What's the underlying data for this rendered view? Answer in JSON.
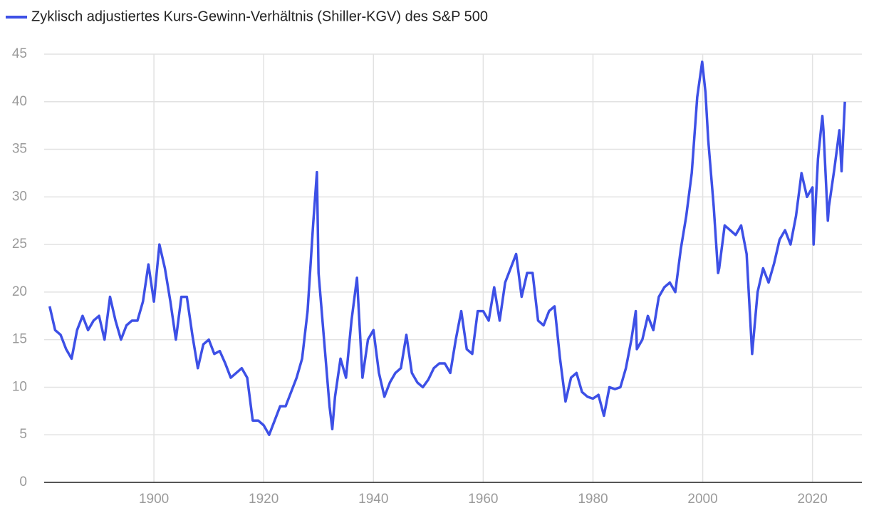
{
  "chart_data": {
    "type": "line",
    "legend_label": "Zyklisch adjustiertes Kurs-Gewinn-Verhältnis (Shiller-KGV) des S&P 500",
    "x": [
      1881,
      1882,
      1883,
      1884,
      1885,
      1886,
      1887,
      1888,
      1889,
      1890,
      1891,
      1892,
      1893,
      1894,
      1895,
      1896,
      1897,
      1898,
      1899,
      1900,
      1901,
      1902,
      1903,
      1904,
      1905,
      1906,
      1907,
      1908,
      1909,
      1910,
      1911,
      1912,
      1913,
      1914,
      1915,
      1916,
      1917,
      1918,
      1919,
      1920,
      1921,
      1922,
      1923,
      1924,
      1925,
      1926,
      1927,
      1928,
      1929,
      1929.7,
      1930,
      1931,
      1932,
      1932.5,
      1933,
      1934,
      1935,
      1936,
      1937,
      1938,
      1939,
      1940,
      1941,
      1942,
      1943,
      1944,
      1945,
      1946,
      1947,
      1948,
      1949,
      1950,
      1951,
      1952,
      1953,
      1954,
      1955,
      1956,
      1957,
      1958,
      1959,
      1960,
      1961,
      1962,
      1963,
      1964,
      1965,
      1966,
      1967,
      1968,
      1969,
      1970,
      1971,
      1972,
      1973,
      1974,
      1975,
      1976,
      1977,
      1978,
      1979,
      1980,
      1981,
      1982,
      1983,
      1984,
      1985,
      1986,
      1987,
      1987.8,
      1988,
      1989,
      1990,
      1991,
      1992,
      1993,
      1994,
      1995,
      1996,
      1997,
      1998,
      1999,
      1999.9,
      2000.5,
      2001,
      2002,
      2002.8,
      2003,
      2004,
      2005,
      2006,
      2007,
      2008,
      2009,
      2010,
      2011,
      2012,
      2013,
      2014,
      2015,
      2016,
      2017,
      2018,
      2019,
      2020,
      2020.2,
      2021,
      2021.8,
      2022,
      2022.8,
      2023,
      2024,
      2024.9,
      2025.3,
      2025.9
    ],
    "series": [
      {
        "name": "Zyklisch adjustiertes Kurs-Gewinn-Verhältnis (Shiller-KGV) des S&P 500",
        "color": "#3d50e6",
        "values": [
          18.5,
          16,
          15.5,
          14,
          13,
          16,
          17.5,
          16,
          17,
          17.5,
          15,
          19.5,
          17,
          15,
          16.5,
          17,
          17,
          19,
          22.9,
          19,
          25,
          22.5,
          19,
          15,
          19.5,
          19.5,
          15.5,
          12,
          14.5,
          15,
          13.5,
          13.8,
          12.5,
          11,
          11.5,
          12,
          11,
          6.5,
          6.5,
          6,
          5,
          6.5,
          8,
          8,
          9.5,
          11,
          13,
          18,
          27,
          32.6,
          22,
          15,
          8,
          5.6,
          9,
          13,
          11,
          17,
          21.5,
          11,
          15,
          16,
          11.5,
          9,
          10.5,
          11.5,
          12,
          15.5,
          11.5,
          10.5,
          10,
          10.8,
          12,
          12.5,
          12.5,
          11.5,
          15,
          18,
          14,
          13.5,
          18,
          18,
          17,
          20.5,
          17,
          21,
          22.5,
          24,
          19.5,
          22,
          22,
          17,
          16.5,
          18,
          18.5,
          13,
          8.5,
          11,
          11.5,
          9.5,
          9,
          8.8,
          9.2,
          7,
          10,
          9.8,
          10,
          12,
          15,
          18,
          14,
          15,
          17.5,
          16,
          19.5,
          20.5,
          21,
          20,
          24.5,
          28,
          32.5,
          40.5,
          44.2,
          41,
          36,
          29,
          22,
          22.5,
          27,
          26.5,
          26,
          27,
          24,
          13.5,
          20,
          22.5,
          21,
          23,
          25.5,
          26.5,
          25,
          28,
          32.5,
          30,
          31,
          25,
          34,
          38.5,
          37,
          27.5,
          29,
          33,
          37,
          32.7,
          40
        ]
      }
    ],
    "xlim": [
      1880,
      2029
    ],
    "ylim": [
      0,
      45
    ],
    "xticks": [
      1900,
      1920,
      1940,
      1960,
      1980,
      2000,
      2020
    ],
    "yticks": [
      0,
      5,
      10,
      15,
      20,
      25,
      30,
      35,
      40,
      45
    ],
    "grid": true
  }
}
